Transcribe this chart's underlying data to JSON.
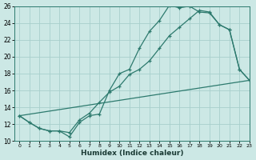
{
  "bg_color": "#cce8e5",
  "grid_color": "#a8d0cc",
  "line_color": "#2d7a6e",
  "line1_x": [
    0,
    1,
    2,
    3,
    4,
    5,
    6,
    7,
    8,
    9,
    10,
    11,
    12,
    13,
    14,
    15,
    16,
    17,
    18,
    19,
    20,
    21,
    22,
    23
  ],
  "line1_y": [
    13.0,
    12.2,
    11.5,
    11.2,
    11.2,
    10.5,
    12.2,
    13.0,
    13.2,
    16.0,
    18.0,
    18.5,
    21.0,
    23.0,
    24.3,
    26.1,
    25.8,
    26.0,
    25.3,
    25.2,
    23.8,
    23.2,
    18.5,
    17.2
  ],
  "line2_x": [
    0,
    1,
    2,
    3,
    4,
    5,
    6,
    7,
    8,
    9,
    10,
    11,
    12,
    13,
    14,
    15,
    16,
    17,
    18,
    19,
    20,
    21,
    22,
    23
  ],
  "line2_y": [
    13.0,
    12.2,
    11.5,
    11.2,
    11.2,
    11.0,
    12.5,
    13.3,
    14.6,
    15.8,
    16.5,
    17.9,
    18.5,
    19.5,
    21.0,
    22.5,
    23.5,
    24.5,
    25.5,
    25.3,
    23.8,
    23.2,
    18.5,
    17.2
  ],
  "line3_x": [
    0,
    23
  ],
  "line3_y": [
    13.0,
    17.2
  ],
  "xlabel": "Humidex (Indice chaleur)",
  "xlim": [
    -0.5,
    23
  ],
  "ylim": [
    10,
    26
  ],
  "yticks": [
    10,
    12,
    14,
    16,
    18,
    20,
    22,
    24,
    26
  ],
  "xticks": [
    0,
    1,
    2,
    3,
    4,
    5,
    6,
    7,
    8,
    9,
    10,
    11,
    12,
    13,
    14,
    15,
    16,
    17,
    18,
    19,
    20,
    21,
    22,
    23
  ]
}
